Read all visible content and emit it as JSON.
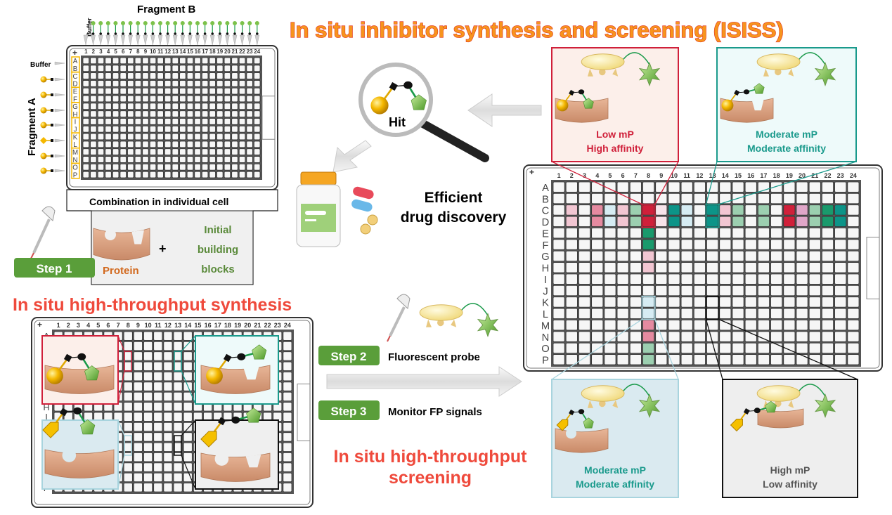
{
  "title": "In situ inhibitor synthesis and screening (ISISS)",
  "synthesis_panel": {
    "fragment_b_label": "Fragment B",
    "fragment_a_label": "Fragment A",
    "buffer_top_label": "Buffer",
    "buffer_left_label": "Buffer",
    "combination_label": "Combination in individual cell",
    "protein_label": "Protein",
    "plus": "+",
    "building_blocks_lines": [
      "Initial",
      "building",
      "blocks"
    ],
    "step1": "Step 1",
    "section_title": "In situ high-throughput synthesis"
  },
  "plate": {
    "columns": [
      "1",
      "2",
      "3",
      "4",
      "5",
      "6",
      "7",
      "8",
      "9",
      "10",
      "11",
      "12",
      "13",
      "14",
      "15",
      "16",
      "17",
      "18",
      "19",
      "20",
      "21",
      "22",
      "23",
      "24"
    ],
    "rows": [
      "A",
      "B",
      "C",
      "D",
      "E",
      "F",
      "G",
      "H",
      "I",
      "J",
      "K",
      "L",
      "M",
      "N",
      "O",
      "P"
    ]
  },
  "middle": {
    "hit_label": "Hit",
    "discovery_lines": [
      "Efficient",
      "drug discovery"
    ],
    "step2": "Step 2",
    "step2_text": "Fluorescent probe",
    "step3": "Step 3",
    "step3_text": "Monitor FP signals",
    "screening_lines": [
      "In situ high-throughput",
      "screening"
    ]
  },
  "insets": {
    "red": {
      "lines": [
        "Low mP",
        "High affinity"
      ],
      "color": "#d0203a"
    },
    "teal": {
      "lines": [
        "Moderate mP",
        "Moderate affinity"
      ],
      "color": "#1a9a8c"
    },
    "lightblue": {
      "lines": [
        "Moderate mP",
        "Moderate affinity"
      ],
      "color": "#1a9a8c"
    },
    "black": {
      "lines": [
        "High mP",
        "Low affinity"
      ],
      "color": "#555555"
    }
  },
  "colors": {
    "red": "#d0203a",
    "pink": "#e58aa0",
    "lightpink": "#f2c6d2",
    "palepink": "#f7e4ea",
    "lightblue": "#d6ecf3",
    "lightgreen": "#9ccfb0",
    "green": "#1a9a6c",
    "teal": "#0d9488",
    "mauve": "#e0a6c8",
    "step_green": "#5a9e3a",
    "protein": "#d9a283",
    "fragment_a": "#f5b800",
    "fragment_b": "#7cc24a"
  },
  "screen_hits": {
    "C2": "lightpink",
    "D2": "lightpink",
    "C4": "pink",
    "D4": "pink",
    "C5": "lightblue",
    "D5": "lightblue",
    "C6": "lightpink",
    "D6": "lightpink",
    "C7": "lightgreen",
    "D7": "lightgreen",
    "C8": "red",
    "D8": "red",
    "C9": "palepink",
    "D9": "palepink",
    "C10": "teal",
    "D10": "teal",
    "C11": "lightblue",
    "D11": "lightblue",
    "C13": "teal",
    "D13": "teal",
    "C14": "lightpink",
    "D14": "lightpink",
    "C15": "lightgreen",
    "D15": "lightgreen",
    "C17": "lightgreen",
    "D17": "lightgreen",
    "C19": "red",
    "D19": "red",
    "C20": "mauve",
    "D20": "mauve",
    "C21": "lightgreen",
    "D21": "lightgreen",
    "C22": "green",
    "D22": "green",
    "C23": "teal",
    "D23": "teal",
    "E8": "green",
    "F8": "green",
    "G8": "lightpink",
    "H8": "lightpink",
    "K8": "lightblue",
    "L8": "lightblue",
    "M8": "pink",
    "N8": "pink",
    "O8": "lightgreen",
    "P8": "lightgreen"
  }
}
